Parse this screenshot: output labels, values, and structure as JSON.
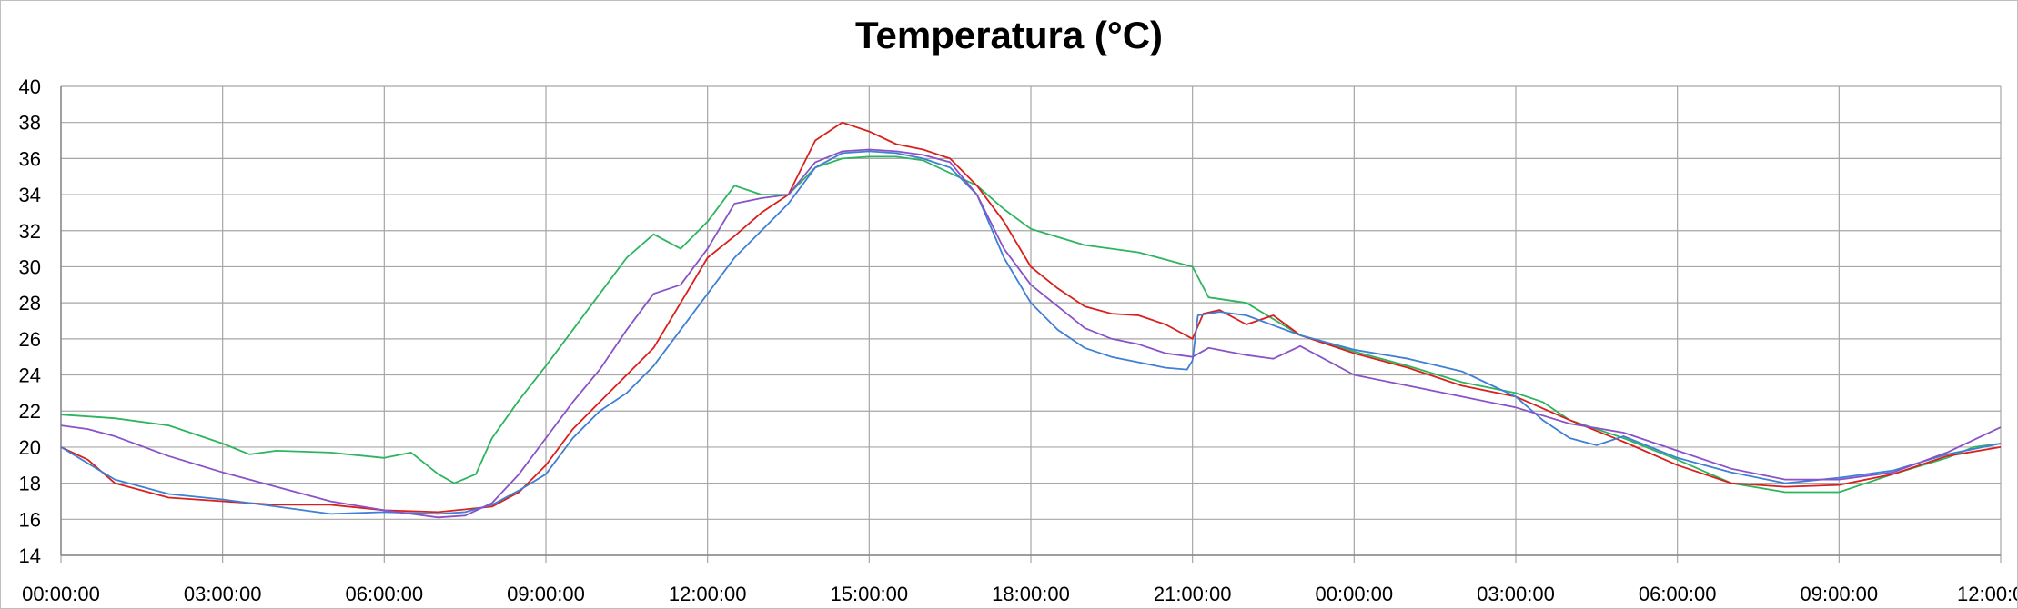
{
  "chart_data": {
    "type": "line",
    "title": "Temperatura (°C)",
    "xlabel": "",
    "ylabel": "",
    "ylim": [
      14,
      40
    ],
    "yticks": [
      "14",
      "16",
      "18",
      "20",
      "22",
      "24",
      "26",
      "28",
      "30",
      "32",
      "34",
      "36",
      "38",
      "40"
    ],
    "xticks": [
      "00:00:00",
      "03:00:00",
      "06:00:00",
      "09:00:00",
      "12:00:00",
      "15:00:00",
      "18:00:00",
      "21:00:00",
      "00:00:00",
      "03:00:00",
      "06:00:00",
      "09:00:00",
      "12:00:00"
    ],
    "xlim_hours": [
      0,
      36
    ],
    "grid": true,
    "legend": "none",
    "series": [
      {
        "color": "#2db45f",
        "points": [
          [
            0,
            21.8
          ],
          [
            1,
            21.6
          ],
          [
            2,
            21.2
          ],
          [
            2.5,
            20.7
          ],
          [
            3,
            20.2
          ],
          [
            3.5,
            19.6
          ],
          [
            4,
            19.8
          ],
          [
            5,
            19.7
          ],
          [
            6,
            19.4
          ],
          [
            6.5,
            19.7
          ],
          [
            7,
            18.5
          ],
          [
            7.3,
            18.0
          ],
          [
            7.7,
            18.5
          ],
          [
            8,
            20.5
          ],
          [
            8.5,
            22.6
          ],
          [
            9,
            24.5
          ],
          [
            9.5,
            26.5
          ],
          [
            10,
            28.5
          ],
          [
            10.5,
            30.5
          ],
          [
            11,
            31.8
          ],
          [
            11.5,
            31.0
          ],
          [
            12,
            32.5
          ],
          [
            12.5,
            34.5
          ],
          [
            13,
            34.0
          ],
          [
            13.5,
            34.0
          ],
          [
            14,
            35.5
          ],
          [
            14.5,
            36.0
          ],
          [
            15,
            36.1
          ],
          [
            15.5,
            36.1
          ],
          [
            16,
            35.9
          ],
          [
            17,
            34.5
          ],
          [
            17.5,
            33.2
          ],
          [
            18,
            32.1
          ],
          [
            19,
            31.2
          ],
          [
            20,
            30.8
          ],
          [
            21,
            30.0
          ],
          [
            21.3,
            28.3
          ],
          [
            22,
            28.0
          ],
          [
            23,
            26.2
          ],
          [
            24,
            25.3
          ],
          [
            25,
            24.5
          ],
          [
            26,
            23.6
          ],
          [
            27,
            23.0
          ],
          [
            27.5,
            22.5
          ],
          [
            28,
            21.5
          ],
          [
            29,
            20.5
          ],
          [
            30,
            19.3
          ],
          [
            31,
            18.0
          ],
          [
            32,
            17.5
          ],
          [
            33,
            17.5
          ],
          [
            34,
            18.5
          ],
          [
            35,
            19.4
          ],
          [
            35.5,
            20.0
          ],
          [
            36,
            20.2
          ]
        ]
      },
      {
        "color": "#d8201c",
        "points": [
          [
            0,
            20.0
          ],
          [
            0.5,
            19.3
          ],
          [
            1,
            18.0
          ],
          [
            2,
            17.2
          ],
          [
            3,
            17.0
          ],
          [
            4,
            16.8
          ],
          [
            5,
            16.8
          ],
          [
            6,
            16.5
          ],
          [
            7,
            16.4
          ],
          [
            8,
            16.7
          ],
          [
            8.5,
            17.5
          ],
          [
            9,
            19.0
          ],
          [
            9.5,
            21.0
          ],
          [
            10,
            22.5
          ],
          [
            10.5,
            24.0
          ],
          [
            11,
            25.5
          ],
          [
            11.5,
            28.0
          ],
          [
            12,
            30.5
          ],
          [
            12.5,
            31.7
          ],
          [
            13,
            33.0
          ],
          [
            13.5,
            34.0
          ],
          [
            14,
            37.0
          ],
          [
            14.5,
            38.0
          ],
          [
            15,
            37.5
          ],
          [
            15.5,
            36.8
          ],
          [
            16,
            36.5
          ],
          [
            16.5,
            36.0
          ],
          [
            17,
            34.5
          ],
          [
            17.5,
            32.5
          ],
          [
            18,
            30.0
          ],
          [
            18.5,
            28.8
          ],
          [
            19,
            27.8
          ],
          [
            19.5,
            27.4
          ],
          [
            20,
            27.3
          ],
          [
            20.5,
            26.8
          ],
          [
            21,
            26.0
          ],
          [
            21.2,
            27.4
          ],
          [
            21.5,
            27.6
          ],
          [
            22,
            26.8
          ],
          [
            22.5,
            27.3
          ],
          [
            23,
            26.2
          ],
          [
            24,
            25.2
          ],
          [
            25,
            24.4
          ],
          [
            26,
            23.4
          ],
          [
            27,
            22.8
          ],
          [
            28,
            21.5
          ],
          [
            29,
            20.3
          ],
          [
            30,
            19.0
          ],
          [
            31,
            18.0
          ],
          [
            32,
            17.8
          ],
          [
            33,
            17.9
          ],
          [
            34,
            18.5
          ],
          [
            35,
            19.5
          ],
          [
            36,
            20.0
          ]
        ]
      },
      {
        "color": "#3f7fd4",
        "points": [
          [
            0,
            20.0
          ],
          [
            1,
            18.2
          ],
          [
            2,
            17.4
          ],
          [
            3,
            17.1
          ],
          [
            4,
            16.7
          ],
          [
            5,
            16.3
          ],
          [
            6,
            16.4
          ],
          [
            7,
            16.3
          ],
          [
            7.5,
            16.4
          ],
          [
            8,
            16.8
          ],
          [
            8.5,
            17.6
          ],
          [
            9,
            18.5
          ],
          [
            9.5,
            20.5
          ],
          [
            10,
            22.0
          ],
          [
            10.5,
            23.0
          ],
          [
            11,
            24.5
          ],
          [
            11.5,
            26.5
          ],
          [
            12,
            28.5
          ],
          [
            12.5,
            30.5
          ],
          [
            13,
            32.0
          ],
          [
            13.5,
            33.5
          ],
          [
            14,
            35.5
          ],
          [
            14.5,
            36.3
          ],
          [
            15,
            36.4
          ],
          [
            15.5,
            36.3
          ],
          [
            16,
            36.0
          ],
          [
            16.5,
            35.5
          ],
          [
            17,
            34.0
          ],
          [
            17.5,
            30.5
          ],
          [
            18,
            28.0
          ],
          [
            18.5,
            26.5
          ],
          [
            19,
            25.5
          ],
          [
            19.5,
            25.0
          ],
          [
            20,
            24.7
          ],
          [
            20.5,
            24.4
          ],
          [
            20.9,
            24.3
          ],
          [
            21,
            24.8
          ],
          [
            21.1,
            27.3
          ],
          [
            21.5,
            27.5
          ],
          [
            22,
            27.3
          ],
          [
            23,
            26.2
          ],
          [
            24,
            25.4
          ],
          [
            25,
            24.9
          ],
          [
            26,
            24.2
          ],
          [
            26.5,
            23.5
          ],
          [
            27,
            22.8
          ],
          [
            27.5,
            21.5
          ],
          [
            28,
            20.5
          ],
          [
            28.5,
            20.1
          ],
          [
            29,
            20.6
          ],
          [
            30,
            19.4
          ],
          [
            31,
            18.6
          ],
          [
            32,
            18.0
          ],
          [
            33,
            18.3
          ],
          [
            34,
            18.7
          ],
          [
            35,
            19.6
          ],
          [
            36,
            20.2
          ]
        ]
      },
      {
        "color": "#8a52c8",
        "points": [
          [
            0,
            21.2
          ],
          [
            0.5,
            21.0
          ],
          [
            1,
            20.6
          ],
          [
            2,
            19.5
          ],
          [
            3,
            18.6
          ],
          [
            4,
            17.8
          ],
          [
            5,
            17.0
          ],
          [
            6,
            16.5
          ],
          [
            7,
            16.1
          ],
          [
            7.5,
            16.2
          ],
          [
            8,
            16.9
          ],
          [
            8.5,
            18.5
          ],
          [
            9,
            20.5
          ],
          [
            9.5,
            22.5
          ],
          [
            10,
            24.3
          ],
          [
            10.5,
            26.5
          ],
          [
            11,
            28.5
          ],
          [
            11.5,
            29.0
          ],
          [
            12,
            31.0
          ],
          [
            12.5,
            33.5
          ],
          [
            13,
            33.8
          ],
          [
            13.5,
            34.0
          ],
          [
            14,
            35.8
          ],
          [
            14.5,
            36.4
          ],
          [
            15,
            36.5
          ],
          [
            15.5,
            36.4
          ],
          [
            16,
            36.2
          ],
          [
            16.5,
            35.8
          ],
          [
            17,
            34.0
          ],
          [
            17.5,
            31.0
          ],
          [
            18,
            29.0
          ],
          [
            18.5,
            27.8
          ],
          [
            19,
            26.6
          ],
          [
            19.5,
            26.0
          ],
          [
            20,
            25.7
          ],
          [
            20.5,
            25.2
          ],
          [
            21,
            25.0
          ],
          [
            21.3,
            25.5
          ],
          [
            22,
            25.1
          ],
          [
            22.5,
            24.9
          ],
          [
            23,
            25.6
          ],
          [
            24,
            24.0
          ],
          [
            25,
            23.4
          ],
          [
            26,
            22.8
          ],
          [
            27,
            22.2
          ],
          [
            28,
            21.3
          ],
          [
            29,
            20.8
          ],
          [
            30,
            19.8
          ],
          [
            31,
            18.8
          ],
          [
            32,
            18.2
          ],
          [
            33,
            18.2
          ],
          [
            34,
            18.6
          ],
          [
            35,
            19.7
          ],
          [
            36,
            21.1
          ]
        ]
      }
    ]
  }
}
